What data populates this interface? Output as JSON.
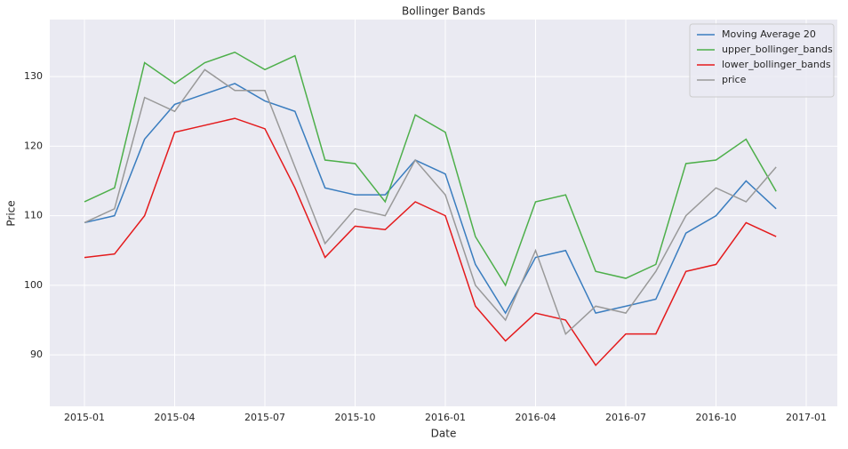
{
  "chart_data": {
    "type": "line",
    "title": "Bollinger Bands",
    "x_label": "Date",
    "y_label": "Price",
    "x": [
      "2015-01",
      "2015-02",
      "2015-03",
      "2015-04",
      "2015-05",
      "2015-06",
      "2015-07",
      "2015-08",
      "2015-09",
      "2015-10",
      "2015-11",
      "2015-12",
      "2016-01",
      "2016-02",
      "2016-03",
      "2016-04",
      "2016-05",
      "2016-06",
      "2016-07",
      "2016-08",
      "2016-09",
      "2016-10",
      "2016-11",
      "2016-12"
    ],
    "series": [
      {
        "name": "Moving Average 20",
        "color": "#3a7dbf",
        "values": [
          109,
          110,
          121,
          126,
          127.5,
          129,
          126.5,
          125,
          114,
          113,
          113,
          118,
          116,
          103,
          96,
          104,
          105,
          96,
          97,
          98,
          107.5,
          110,
          115,
          111
        ]
      },
      {
        "name": "upper_bollinger_bands",
        "color": "#4daf4a",
        "values": [
          112,
          114,
          132,
          129,
          132,
          133.5,
          131,
          133,
          118,
          117.5,
          112,
          124.5,
          122,
          107,
          100,
          112,
          113,
          102,
          101,
          103,
          117.5,
          118,
          121,
          113.5
        ]
      },
      {
        "name": "lower_bollinger_bands",
        "color": "#e41a1c",
        "values": [
          104,
          104.5,
          110,
          122,
          123,
          124,
          122.5,
          114,
          104,
          108.5,
          108,
          112,
          110,
          97,
          92,
          96,
          95,
          88.5,
          93,
          93,
          102,
          103,
          109,
          107
        ]
      },
      {
        "name": "price",
        "color": "#999999",
        "values": [
          109,
          111,
          127,
          125,
          131,
          128,
          128,
          117,
          106,
          111,
          110,
          118,
          113,
          100,
          95,
          105,
          93,
          97,
          96,
          102,
          110,
          114,
          112,
          117
        ]
      }
    ],
    "xlim": [
      "2015-01",
      "2017-01"
    ],
    "xticks": [
      "2015-01",
      "2015-04",
      "2015-07",
      "2015-10",
      "2016-01",
      "2016-04",
      "2016-07",
      "2016-10",
      "2017-01"
    ],
    "ylim": [
      82.6,
      138.2
    ],
    "yticks": [
      90,
      100,
      110,
      120,
      130
    ],
    "grid": true,
    "legend": "upper-right"
  }
}
